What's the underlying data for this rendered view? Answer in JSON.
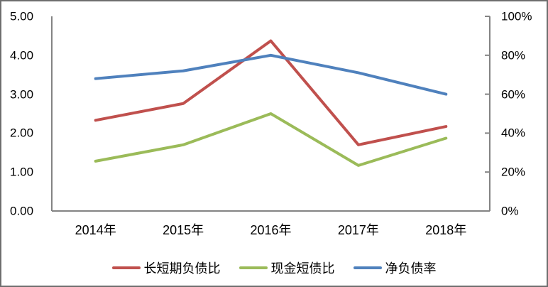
{
  "chart_data": {
    "type": "line",
    "title": "",
    "categories": [
      "2014年",
      "2015年",
      "2016年",
      "2017年",
      "2018年"
    ],
    "series": [
      {
        "name": "长短期负债比",
        "axis": "left",
        "color": "#C0504D",
        "values": [
          2.33,
          2.76,
          4.37,
          1.7,
          2.17
        ]
      },
      {
        "name": "现金短债比",
        "axis": "left",
        "color": "#9BBB59",
        "values": [
          1.28,
          1.7,
          2.5,
          1.17,
          1.87
        ]
      },
      {
        "name": "净负债率",
        "axis": "right",
        "color": "#4F81BD",
        "values": [
          68,
          72,
          80,
          71,
          60
        ]
      }
    ],
    "left_axis": {
      "min": 0,
      "max": 5,
      "step": 1,
      "tick_labels": [
        "0.00",
        "1.00",
        "2.00",
        "3.00",
        "4.00",
        "5.00"
      ]
    },
    "right_axis": {
      "min": 0,
      "max": 100,
      "step": 20,
      "tick_labels": [
        "0%",
        "20%",
        "40%",
        "60%",
        "80%",
        "100%"
      ]
    },
    "legend_position": "bottom",
    "grid": false
  },
  "colors": {
    "axis": "#848484",
    "border": "#6e6e6e",
    "text": "#000000",
    "background": "#ffffff"
  }
}
